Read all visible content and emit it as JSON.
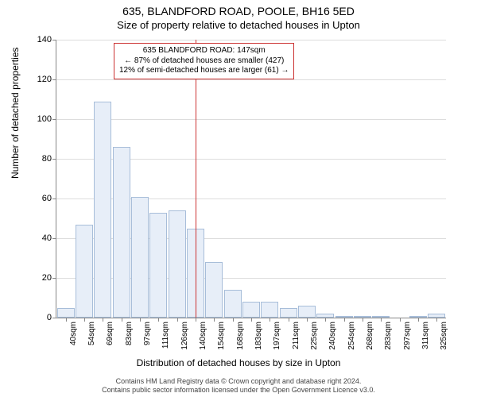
{
  "title": "635, BLANDFORD ROAD, POOLE, BH16 5ED",
  "subtitle": "Size of property relative to detached houses in Upton",
  "ylabel": "Number of detached properties",
  "xlabel": "Distribution of detached houses by size in Upton",
  "chart": {
    "type": "histogram",
    "ylim": [
      0,
      140
    ],
    "ytick_step": 20,
    "bar_fill": "#e7eef8",
    "bar_stroke": "#a7bdd9",
    "grid_color": "#dddddd",
    "axis_color": "#888888",
    "background_color": "#ffffff",
    "label_fontsize": 11,
    "categories": [
      "40sqm",
      "54sqm",
      "69sqm",
      "83sqm",
      "97sqm",
      "111sqm",
      "126sqm",
      "140sqm",
      "154sqm",
      "168sqm",
      "183sqm",
      "197sqm",
      "211sqm",
      "225sqm",
      "240sqm",
      "254sqm",
      "268sqm",
      "283sqm",
      "297sqm",
      "311sqm",
      "325sqm"
    ],
    "values": [
      5,
      47,
      109,
      86,
      61,
      53,
      54,
      45,
      28,
      14,
      8,
      8,
      5,
      6,
      2,
      1,
      1,
      1,
      0,
      1,
      2
    ],
    "marker_line": {
      "at_category_index": 7.5,
      "color": "#cc3333"
    },
    "annotation": {
      "lines": [
        "635 BLANDFORD ROAD: 147sqm",
        "← 87% of detached houses are smaller (427)",
        "12% of semi-detached houses are larger (61) →"
      ],
      "border_color": "#cc3333"
    }
  },
  "footer": {
    "line1": "Contains HM Land Registry data © Crown copyright and database right 2024.",
    "line2": "Contains public sector information licensed under the Open Government Licence v3.0."
  }
}
